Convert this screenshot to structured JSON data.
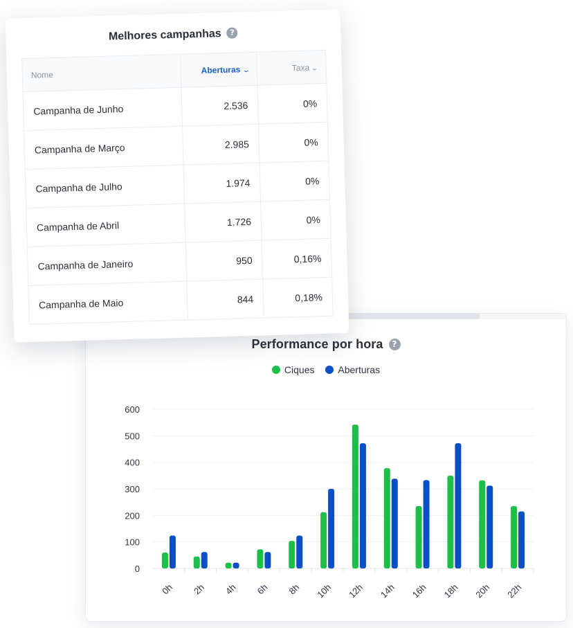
{
  "top_card": {
    "title": "Melhores campanhas",
    "help_icon": "question-circle-icon",
    "columns": [
      {
        "label": "Nome",
        "sortable": false
      },
      {
        "label": "Aberturas",
        "sortable": true,
        "active": true,
        "icon": "chevron-down-icon"
      },
      {
        "label": "Taxa",
        "sortable": true,
        "active": false,
        "icon": "chevron-down-icon"
      }
    ],
    "rows": [
      {
        "name": "Campanha de Junho",
        "aberturas": "2.536",
        "taxa": "0%"
      },
      {
        "name": "Campanha de Março",
        "aberturas": "2.985",
        "taxa": "0%"
      },
      {
        "name": "Campanha de Julho",
        "aberturas": "1.974",
        "taxa": "0%"
      },
      {
        "name": "Campanha de Abril",
        "aberturas": "1.726",
        "taxa": "0%"
      },
      {
        "name": "Campanha de Janeiro",
        "aberturas": "950",
        "taxa": "0,16%"
      },
      {
        "name": "Campanha de Maio",
        "aberturas": "844",
        "taxa": "0,18%"
      }
    ]
  },
  "chart_data": {
    "type": "bar",
    "title": "Performance por hora",
    "help_icon": "question-circle-icon",
    "categories": [
      "0h",
      "2h",
      "4h",
      "6h",
      "8h",
      "10h",
      "12h",
      "14h",
      "16h",
      "18h",
      "20h",
      "22h"
    ],
    "series": [
      {
        "name": "Ciques",
        "color": "#1dbf4a",
        "values": [
          60,
          45,
          22,
          72,
          104,
          212,
          542,
          378,
          235,
          350,
          332,
          235
        ]
      },
      {
        "name": "Aberturas",
        "color": "#0b4fc4",
        "values": [
          124,
          62,
          22,
          62,
          124,
          300,
          472,
          338,
          333,
          472,
          312,
          215
        ]
      }
    ],
    "yticks": [
      "600",
      "500",
      "400",
      "300",
      "200",
      "100",
      "0"
    ],
    "ylim": [
      0,
      600
    ],
    "xlabel": "",
    "ylabel": "",
    "grid": true,
    "legend_position": "top-center"
  }
}
